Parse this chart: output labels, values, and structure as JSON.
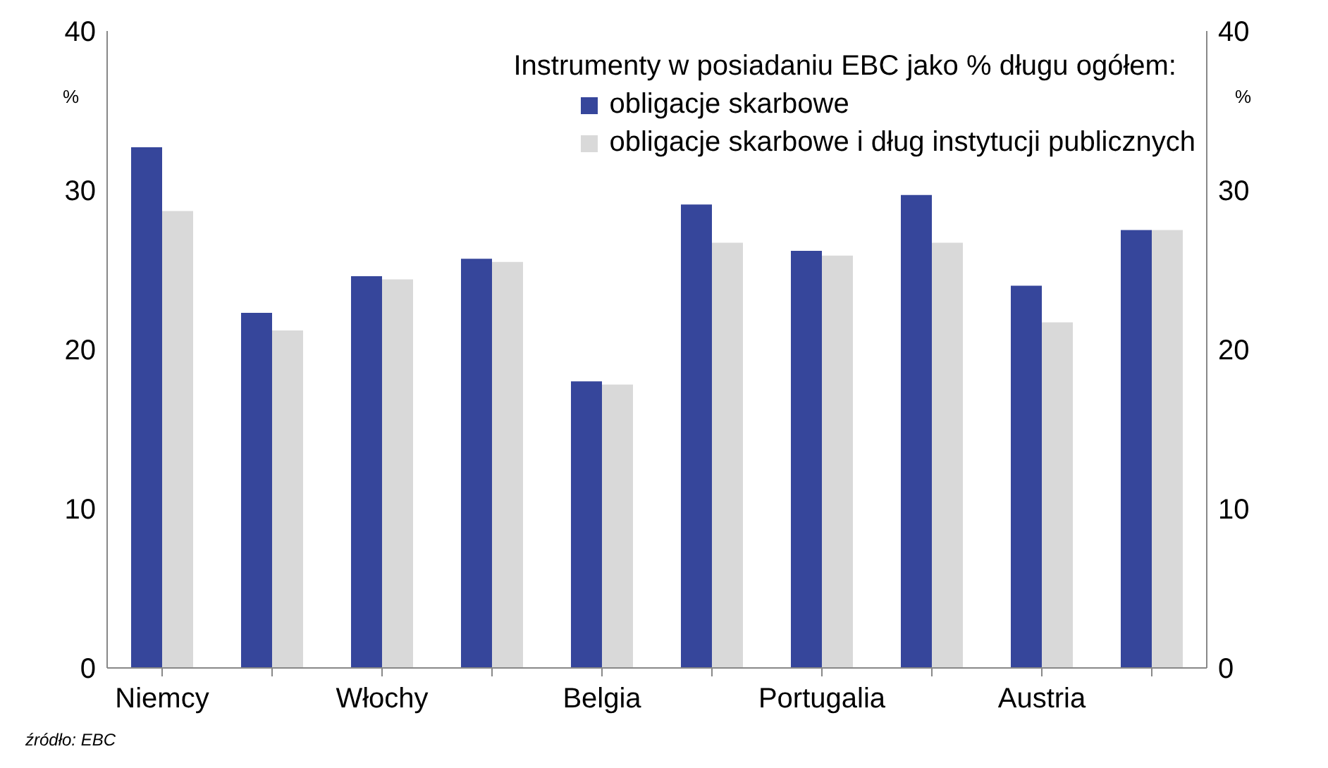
{
  "chart_data": {
    "type": "bar",
    "legend_title": "Instrumenty w posiadaniu EBC jako % długu ogółem:",
    "ylabel": "%",
    "y2label": "%",
    "categories": [
      "Niemcy",
      null,
      "Włochy",
      null,
      "Belgia",
      null,
      "Portugalia",
      null,
      "Austria",
      null
    ],
    "series": [
      {
        "name": "obligacje skarbowe",
        "color": "#36469b",
        "values": [
          32.7,
          22.3,
          24.6,
          25.7,
          18.0,
          29.1,
          26.2,
          29.7,
          24.0,
          27.5
        ]
      },
      {
        "name": "obligacje skarbowe i dług instytucji publicznych",
        "color": "#d9d9d9",
        "values": [
          28.7,
          21.2,
          24.4,
          25.5,
          17.8,
          26.7,
          25.9,
          26.7,
          21.7,
          27.5
        ]
      }
    ],
    "ylim": [
      0,
      40
    ],
    "yticks": [
      0,
      10,
      20,
      30,
      40
    ],
    "y2lim": [
      0,
      40
    ],
    "y2ticks": [
      0,
      10,
      20,
      30,
      40
    ],
    "legend": "top right",
    "annotations": [
      "źródło: EBC"
    ]
  }
}
